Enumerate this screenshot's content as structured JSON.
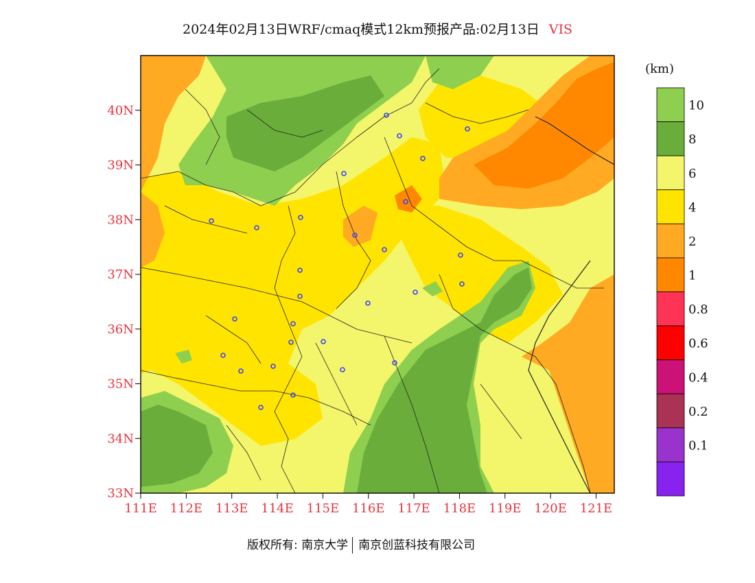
{
  "title": {
    "main": "2024年02月13日WRF/cmaq模式12km预报产品:02月13日",
    "variable": "VIS"
  },
  "map": {
    "lat_labels": [
      "40N",
      "39N",
      "38N",
      "37N",
      "36N",
      "35N",
      "34N",
      "33N"
    ],
    "lon_labels": [
      "111E",
      "112E",
      "113E",
      "114E",
      "115E",
      "116E",
      "117E",
      "118E",
      "119E",
      "120E",
      "121E"
    ],
    "lat_range": [
      33,
      41
    ],
    "lon_range": [
      111,
      121.4
    ]
  },
  "colorbar": {
    "unit": "(km)",
    "labels": [
      "10",
      "8",
      "6",
      "4",
      "2",
      "1",
      "0.8",
      "0.6",
      "0.4",
      "0.2",
      "0.1"
    ],
    "colors": [
      "#8ecf50",
      "#6aad3a",
      "#f3f56a",
      "#ffe400",
      "#ffaa22",
      "#ff8800",
      "#ff3355",
      "#ff0000",
      "#cc1177",
      "#aa3355",
      "#9933cc",
      "#8822ee"
    ]
  },
  "colors": {
    "green_light": "#8ecf50",
    "green_dark": "#6aad3a",
    "yellow_light": "#f3f56a",
    "yellow": "#ffe400",
    "orange_light": "#ffaa22",
    "orange": "#ff8800",
    "station": "#3344ff",
    "tick_label": "#e8323c"
  },
  "footer": {
    "copyright": "版权所有: 南京大学",
    "company": "南京创蓝科技有限公司"
  }
}
